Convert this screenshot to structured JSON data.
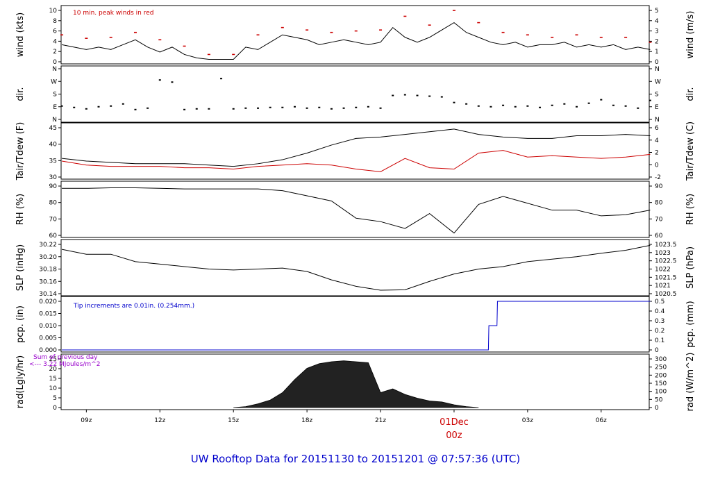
{
  "chart_data": {
    "type": "line",
    "title": "UW Rooftop Data for 20151130  to  20151201 @ 07:57:36  (UTC)",
    "x_tick_labels": [
      "09z",
      "12z",
      "15z",
      "18z",
      "21z",
      "01Dec",
      "00z",
      "03z",
      "06z"
    ],
    "x_range_hours_utc": [
      7.97,
      31.96
    ],
    "panels": [
      {
        "name": "wind",
        "ylabel": "wind (kts)",
        "ylabel_right": "wind (m/s)",
        "ylim": [
          0,
          10.5
        ],
        "yticks": [
          "0",
          "2",
          "4",
          "6",
          "8",
          "10"
        ],
        "yticks_right": [
          "0",
          "1",
          "2",
          "3",
          "4",
          "5"
        ],
        "annotation": "10 min. peak winds in red",
        "series": [
          {
            "color": "#000000",
            "x_hours": [
              8,
              8.5,
              9,
              9.5,
              10,
              10.5,
              11,
              11.5,
              12,
              12.5,
              13,
              13.5,
              14,
              14.5,
              15,
              15.5,
              16,
              16.5,
              17,
              17.5,
              18,
              18.5,
              19,
              19.5,
              20,
              20.5,
              21,
              21.5,
              22,
              22.5,
              23,
              23.5,
              24,
              24.5,
              25,
              25.5,
              26,
              26.5,
              27,
              27.5,
              28,
              28.5,
              29,
              29.5,
              30,
              30.5,
              31,
              31.5,
              32
            ],
            "values": [
              3.5,
              3,
              2.5,
              3,
              2.5,
              3.5,
              4.5,
              3,
              2,
              3,
              1.5,
              0.8,
              0.5,
              0.5,
              0.5,
              3,
              2.5,
              4,
              5.5,
              5,
              4.5,
              3.5,
              4,
              4.5,
              4,
              3.5,
              4,
              7,
              5,
              4,
              5,
              6.5,
              8,
              6,
              5,
              4,
              3.5,
              4,
              3,
              3.5,
              3.5,
              4,
              3,
              3.5,
              3,
              3.5,
              2.5,
              3,
              2.5
            ]
          },
          {
            "color": "#cc0000",
            "x_hours": [
              8,
              9,
              10,
              11,
              12,
              13,
              14,
              15,
              16,
              17,
              18,
              19,
              20,
              21,
              22,
              23,
              24,
              25,
              26,
              27,
              28,
              29,
              30,
              31,
              32
            ],
            "values": [
              5.5,
              4.8,
              5,
              6,
              4.5,
              3.2,
              1.5,
              1.5,
              5.5,
              7,
              6.5,
              6,
              6.3,
              6.5,
              9.3,
              7.5,
              10.5,
              8,
              6,
              5.5,
              5,
              5.5,
              5,
              5,
              4
            ]
          }
        ]
      },
      {
        "name": "dir",
        "ylabel": "dir.",
        "ylabel_right": "dir.",
        "yticks": [
          "N",
          "W",
          "S",
          "E",
          "N"
        ],
        "yticks_right": [
          "N",
          "W",
          "S",
          "E",
          "N"
        ],
        "series": [
          {
            "color": "#000000",
            "x_hours": [
              8,
              8.5,
              9,
              9.5,
              10,
              10.5,
              11,
              11.5,
              12,
              12.5,
              13,
              13.5,
              14,
              14.5,
              15,
              15.5,
              16,
              16.5,
              17,
              17.5,
              18,
              18.5,
              19,
              19.5,
              20,
              20.5,
              21,
              21.5,
              22,
              22.5,
              23,
              23.5,
              24,
              24.5,
              25,
              25.5,
              26,
              26.5,
              27,
              27.5,
              28,
              28.5,
              29,
              29.5,
              30,
              30.5,
              31,
              31.5,
              32
            ],
            "values_deg": [
              95,
              85,
              75,
              90,
              95,
              110,
              70,
              80,
              280,
              265,
              70,
              75,
              75,
              290,
              75,
              80,
              80,
              85,
              85,
              90,
              80,
              85,
              75,
              80,
              85,
              90,
              80,
              170,
              175,
              170,
              165,
              160,
              120,
              110,
              95,
              90,
              100,
              90,
              95,
              85,
              100,
              110,
              90,
              115,
              140,
              100,
              95,
              80,
              135
            ]
          }
        ]
      },
      {
        "name": "temp",
        "ylabel": "Tair/Tdew (F)",
        "ylabel_right": "Tair/Tdew (C)",
        "ylim": [
          26.5,
          45
        ],
        "yticks": [
          "30",
          "35",
          "40",
          "45"
        ],
        "yticks_right": [
          "-2",
          "0",
          "2",
          "4",
          "6"
        ],
        "series": [
          {
            "name": "Tair",
            "color": "#000000",
            "x_hours": [
              8,
              9,
              10,
              11,
              12,
              13,
              14,
              15,
              16,
              17,
              18,
              19,
              20,
              21,
              22,
              23,
              24,
              25,
              26,
              27,
              28,
              29,
              30,
              31,
              32
            ],
            "values": [
              33.5,
              32.5,
              32,
              31.5,
              31.5,
              31.5,
              31,
              30.5,
              31.5,
              33,
              35.5,
              38.5,
              41,
              41.5,
              42.5,
              43.5,
              44.5,
              42.5,
              41.5,
              41,
              41,
              42,
              42,
              42.5,
              42
            ]
          },
          {
            "name": "Tdew",
            "color": "#cc0000",
            "x_hours": [
              8,
              9,
              10,
              11,
              12,
              13,
              14,
              15,
              16,
              17,
              18,
              19,
              20,
              21,
              22,
              23,
              24,
              25,
              26,
              27,
              28,
              29,
              30,
              31,
              32
            ],
            "values": [
              32.5,
              31,
              30.5,
              30.5,
              30.5,
              30,
              30,
              29.5,
              30.5,
              31,
              31.5,
              31,
              29.5,
              28.5,
              33.5,
              30,
              29.5,
              35.5,
              36.5,
              34,
              34.5,
              34,
              33.5,
              34,
              35
            ]
          }
        ]
      },
      {
        "name": "rh",
        "ylabel": "RH (%)",
        "ylabel_right": "RH (%)",
        "ylim": [
          54,
          97
        ],
        "yticks": [
          "60",
          "70",
          "80",
          "90"
        ],
        "yticks_right": [
          "60",
          "70",
          "80",
          "90"
        ],
        "series": [
          {
            "color": "#000000",
            "x_hours": [
              8,
              9,
              10,
              11,
              12,
              13,
              14,
              15,
              16,
              17,
              18,
              19,
              20,
              21,
              22,
              23,
              24,
              25,
              26,
              27,
              28,
              29,
              30,
              31,
              32
            ],
            "values": [
              95,
              95,
              95.5,
              95.5,
              95,
              94.5,
              94.5,
              94.5,
              94.5,
              93,
              88.5,
              84,
              69,
              66,
              60,
              73,
              56,
              81,
              88,
              82,
              76,
              76,
              71,
              72,
              76
            ]
          }
        ]
      },
      {
        "name": "slp",
        "ylabel": "SLP (inHg)",
        "ylabel_right": "SLP (hPa)",
        "ylim": [
          30.13,
          30.23
        ],
        "yticks": [
          "30.14",
          "30.16",
          "30.18",
          "30.20",
          "30.22"
        ],
        "yticks_right": [
          "1020.5",
          "1021",
          "1021.5",
          "1022",
          "1022.5",
          "1023",
          "1023.5"
        ],
        "series": [
          {
            "color": "#000000",
            "x_hours": [
              8,
              9,
              10,
              11,
              12,
              13,
              14,
              15,
              16,
              17,
              18,
              19,
              20,
              21,
              22,
              23,
              24,
              25,
              26,
              27,
              28,
              29,
              30,
              31,
              32
            ],
            "values": [
              30.22,
              30.21,
              30.21,
              30.195,
              30.19,
              30.185,
              30.18,
              30.178,
              30.18,
              30.182,
              30.175,
              30.158,
              30.145,
              30.137,
              30.138,
              30.155,
              30.17,
              30.18,
              30.185,
              30.195,
              30.2,
              30.205,
              30.212,
              30.218,
              30.228
            ]
          }
        ]
      },
      {
        "name": "pcp",
        "ylabel": "pcp. (in)",
        "ylabel_right": "pcp. (mm)",
        "ylim": [
          0,
          0.02
        ],
        "yticks": [
          "0.000",
          "0.005",
          "0.010",
          "0.015",
          "0.020"
        ],
        "yticks_right": [
          "0",
          "0.1",
          "0.2",
          "0.3",
          "0.4",
          "0.5"
        ],
        "annotation": "Tip increments are 0.01in. (0.254mm.)",
        "series": [
          {
            "color": "#0000cc",
            "x_hours": [
              8,
              25.4,
              25.42,
              25.75,
              25.77,
              32
            ],
            "values": [
              0,
              0,
              0.01,
              0.01,
              0.02,
              0.02
            ]
          }
        ]
      },
      {
        "name": "rad",
        "type": "area",
        "ylabel": "rad(Lgly/hr)",
        "ylabel_right": "rad (W/m^2)",
        "ylim": [
          0,
          26
        ],
        "yticks": [
          "0",
          "5",
          "10",
          "15",
          "20",
          "25"
        ],
        "yticks_right": [
          "0",
          "50",
          "100",
          "150",
          "200",
          "250",
          "300"
        ],
        "annotation": [
          "Sum of previous day",
          "<--- 3.22 MJoules/m^2"
        ],
        "series": [
          {
            "color": "#000000",
            "x_hours": [
              15,
              15.5,
              16,
              16.5,
              17,
              17.5,
              18,
              18.5,
              19,
              19.5,
              20,
              20.5,
              21,
              21.5,
              22,
              22.5,
              23,
              23.5,
              24,
              24.5,
              25
            ],
            "values": [
              0,
              0.5,
              2,
              4,
              8,
              15,
              21,
              23.5,
              24.5,
              25,
              24.5,
              24,
              8,
              10,
              7,
              5,
              3.5,
              3,
              1.5,
              0.5,
              0
            ]
          }
        ]
      }
    ]
  },
  "footer": "UW Rooftop Data for 20151130  to  20151201 @ 07:57:36  (UTC)"
}
